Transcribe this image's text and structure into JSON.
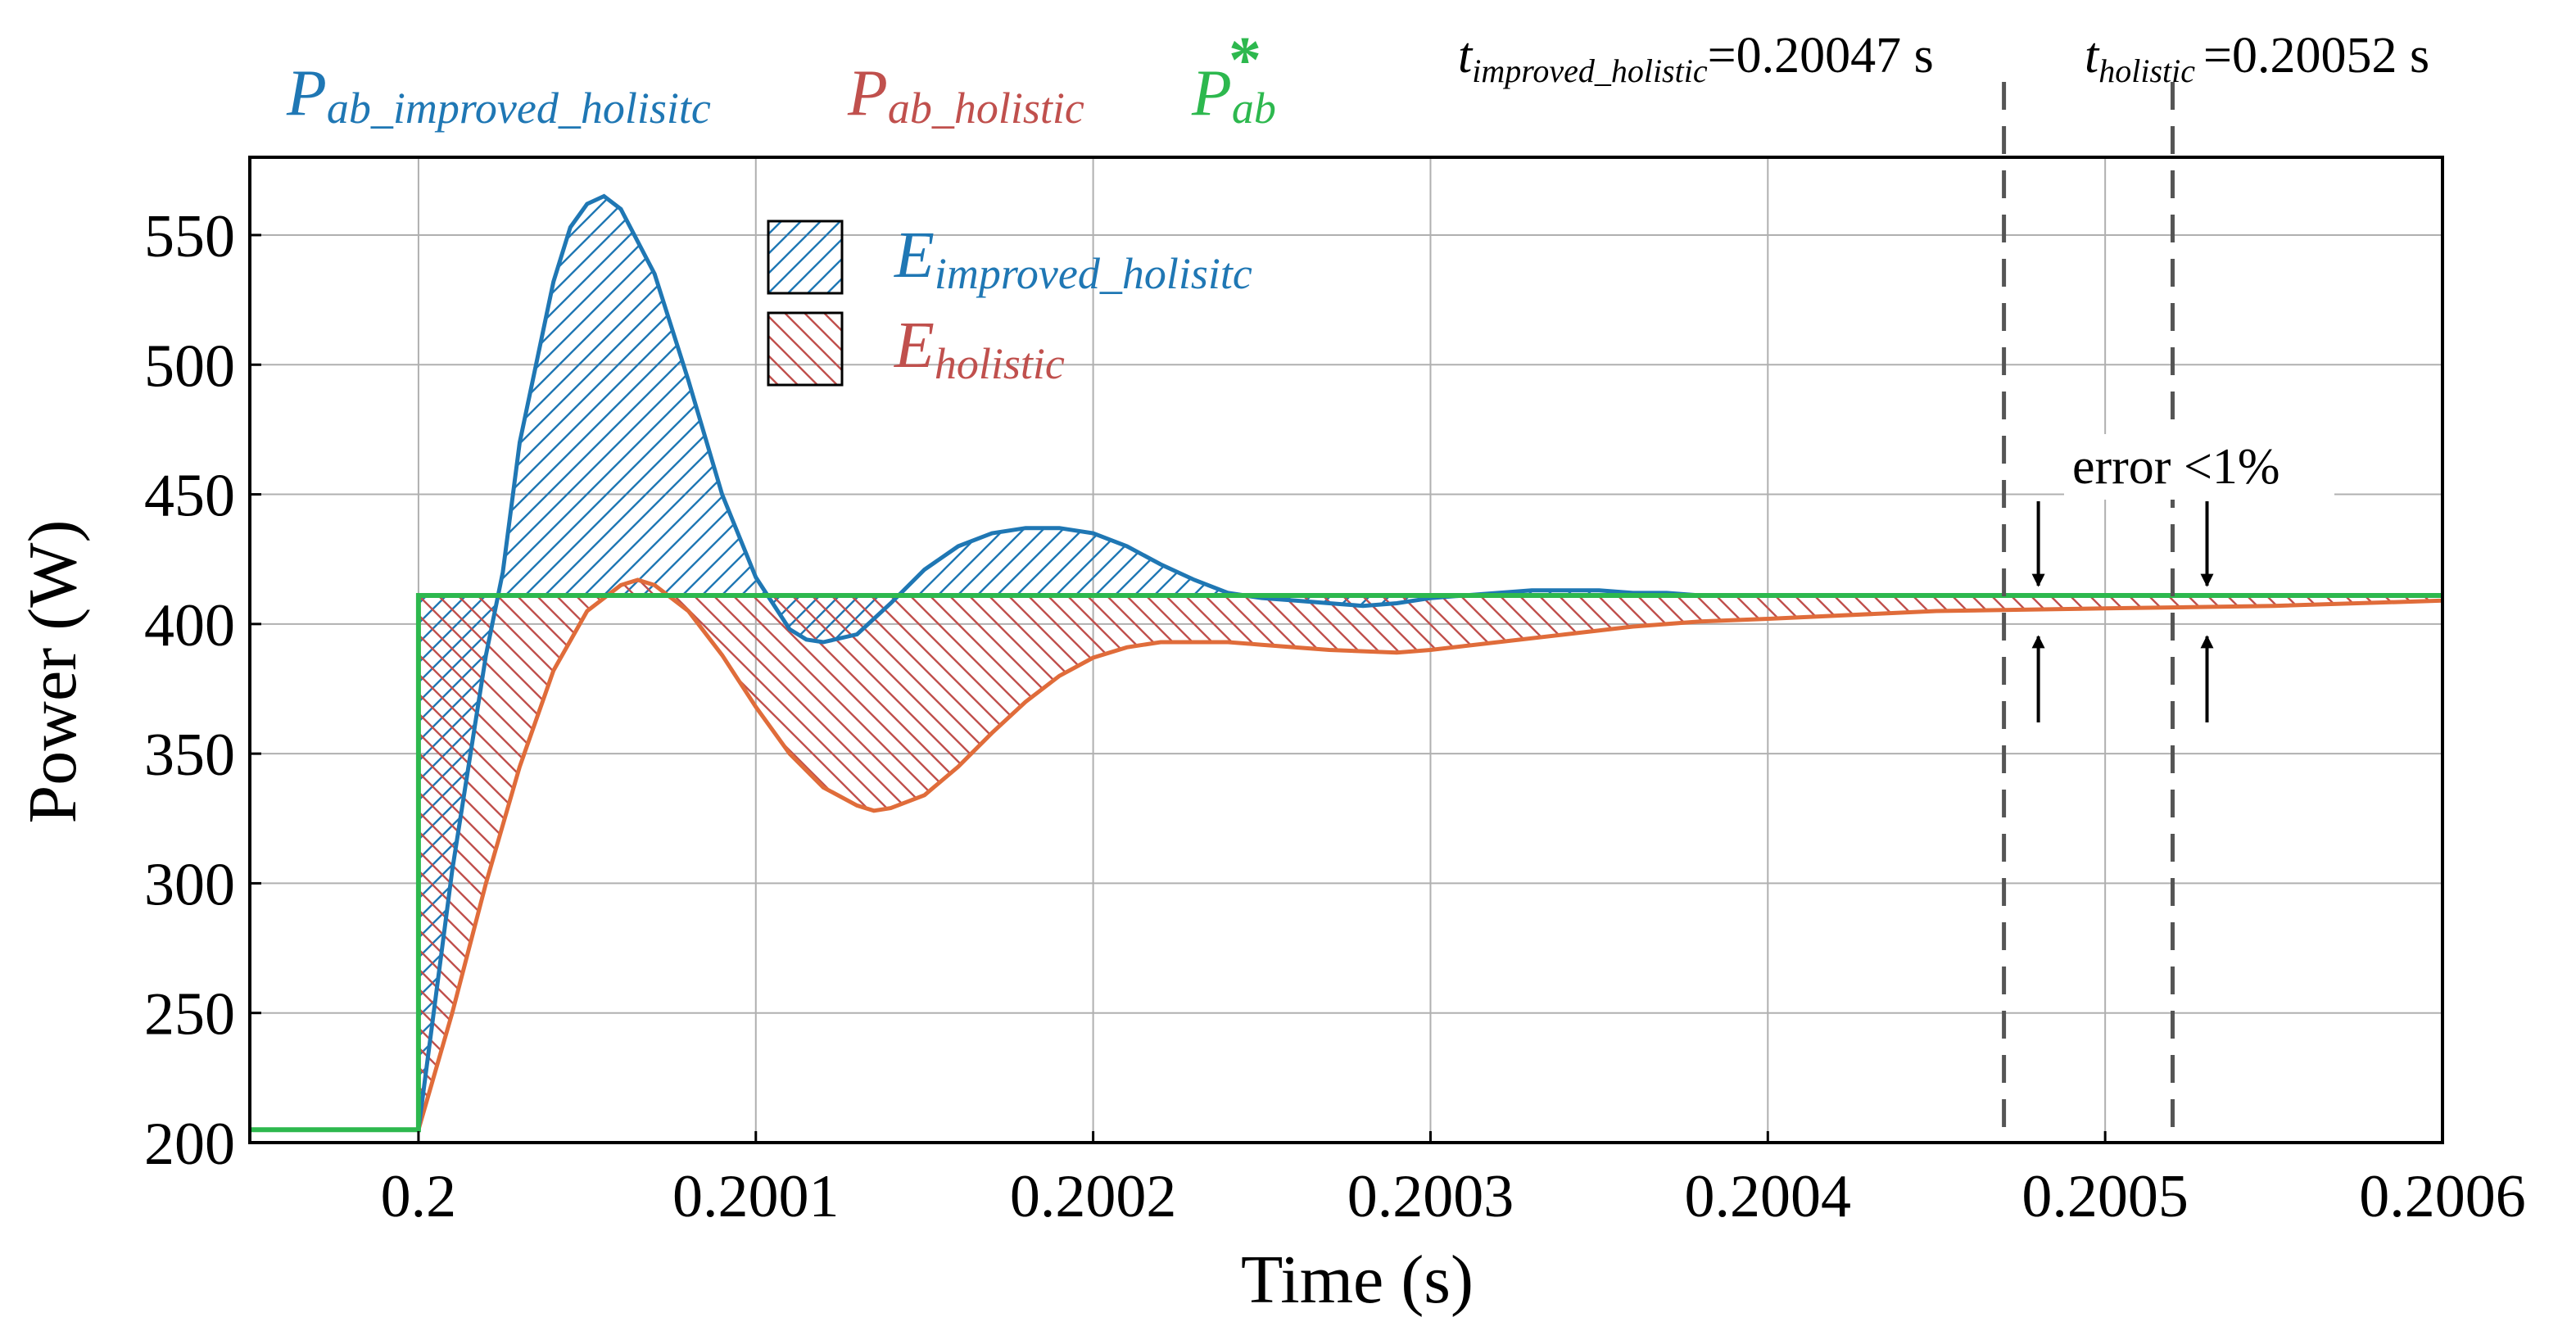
{
  "chart_data": {
    "type": "line",
    "title": "",
    "xlabel": "Time (s)",
    "ylabel": "Power (W)",
    "xlim": [
      0.19995,
      0.2006
    ],
    "ylim": [
      200,
      580
    ],
    "x_ticks": [
      0.2,
      0.2001,
      0.2002,
      0.2003,
      0.2004,
      0.2005,
      0.2006
    ],
    "x_tick_labels": [
      "0.2",
      "0.2001",
      "0.2002",
      "0.2003",
      "0.2004",
      "0.2005",
      "0.2006"
    ],
    "y_ticks": [
      200,
      250,
      300,
      350,
      400,
      450,
      500,
      550
    ],
    "y_tick_labels": [
      "200",
      "250",
      "300",
      "350",
      "400",
      "450",
      "500",
      "550"
    ],
    "grid": true,
    "series": [
      {
        "name": "P_ab_improved_holisitc",
        "label_main": "P",
        "label_sub": "ab_improved_holisitc",
        "color": "#1f77b4",
        "x": [
          0.19995,
          0.2,
          0.20001,
          0.20002,
          0.200025,
          0.20003,
          0.20004,
          0.200045,
          0.20005,
          0.200055,
          0.20006,
          0.20007,
          0.20008,
          0.20009,
          0.2001,
          0.20011,
          0.200115,
          0.20012,
          0.20013,
          0.20014,
          0.20015,
          0.20016,
          0.20017,
          0.20018,
          0.20019,
          0.2002,
          0.20021,
          0.20022,
          0.20023,
          0.20024,
          0.20025,
          0.20026,
          0.20027,
          0.20028,
          0.20029,
          0.2003,
          0.20031,
          0.20032,
          0.20033,
          0.20034,
          0.20035,
          0.20036,
          0.20037,
          0.20038,
          0.2004,
          0.2006
        ],
        "values": [
          205,
          205,
          305,
          388,
          420,
          470,
          532,
          553,
          562,
          565,
          560,
          535,
          494,
          450,
          418,
          398,
          394,
          393,
          396,
          408,
          421,
          430,
          435,
          437,
          437,
          435,
          430,
          423,
          417,
          412,
          410,
          409,
          408,
          407,
          408,
          410,
          411,
          412,
          413,
          413,
          413,
          412,
          412,
          411,
          411,
          411
        ]
      },
      {
        "name": "P_ab_holistic",
        "label_main": "P",
        "label_sub": "ab_holistic",
        "color": "#e06c3a",
        "x": [
          0.19995,
          0.2,
          0.20001,
          0.20002,
          0.20003,
          0.20004,
          0.20005,
          0.20006,
          0.200065,
          0.20007,
          0.20008,
          0.20009,
          0.2001,
          0.20011,
          0.20012,
          0.20013,
          0.200135,
          0.20014,
          0.20015,
          0.20016,
          0.20017,
          0.20018,
          0.20019,
          0.2002,
          0.20021,
          0.20022,
          0.20023,
          0.20024,
          0.20025,
          0.20027,
          0.20029,
          0.2003,
          0.20032,
          0.20034,
          0.20036,
          0.20038,
          0.2004,
          0.20045,
          0.2005,
          0.20055,
          0.2006
        ],
        "values": [
          205,
          205,
          250,
          300,
          345,
          382,
          405,
          415,
          417,
          415,
          405,
          388,
          368,
          350,
          337,
          330,
          328,
          329,
          334,
          345,
          358,
          370,
          380,
          387,
          391,
          393,
          393,
          393,
          392,
          390,
          389,
          390,
          393,
          396,
          399,
          401,
          402,
          405,
          406,
          407,
          409
        ]
      },
      {
        "name": "P*_ab",
        "label_main": "P",
        "label_sub": "ab",
        "label_sup": "*",
        "color": "#2db84e",
        "x": [
          0.19995,
          0.2,
          0.2,
          0.2006
        ],
        "values": [
          205,
          205,
          411,
          411
        ]
      }
    ],
    "areas": [
      {
        "name": "E_improved_holisitc",
        "label_main": "E",
        "label_sub": "improved_holisitc",
        "color": "#1f77b4",
        "between": [
          "P_ab_improved_holisitc",
          "P*_ab"
        ],
        "hatch": "forward"
      },
      {
        "name": "E_holistic",
        "label_main": "E",
        "label_sub": "holistic",
        "color": "#c0504d",
        "between": [
          "P_ab_holistic",
          "P*_ab"
        ],
        "hatch": "backward"
      }
    ],
    "vlines": [
      {
        "x": 0.20047,
        "label_main": "t",
        "label_sub": "improved_holistic",
        "label_value": "=0.20047 s"
      },
      {
        "x": 0.20052,
        "label_main": "t",
        "label_sub": "holistic",
        "label_value": "=0.20052 s"
      }
    ],
    "annotation": {
      "text": "error <1%"
    }
  }
}
